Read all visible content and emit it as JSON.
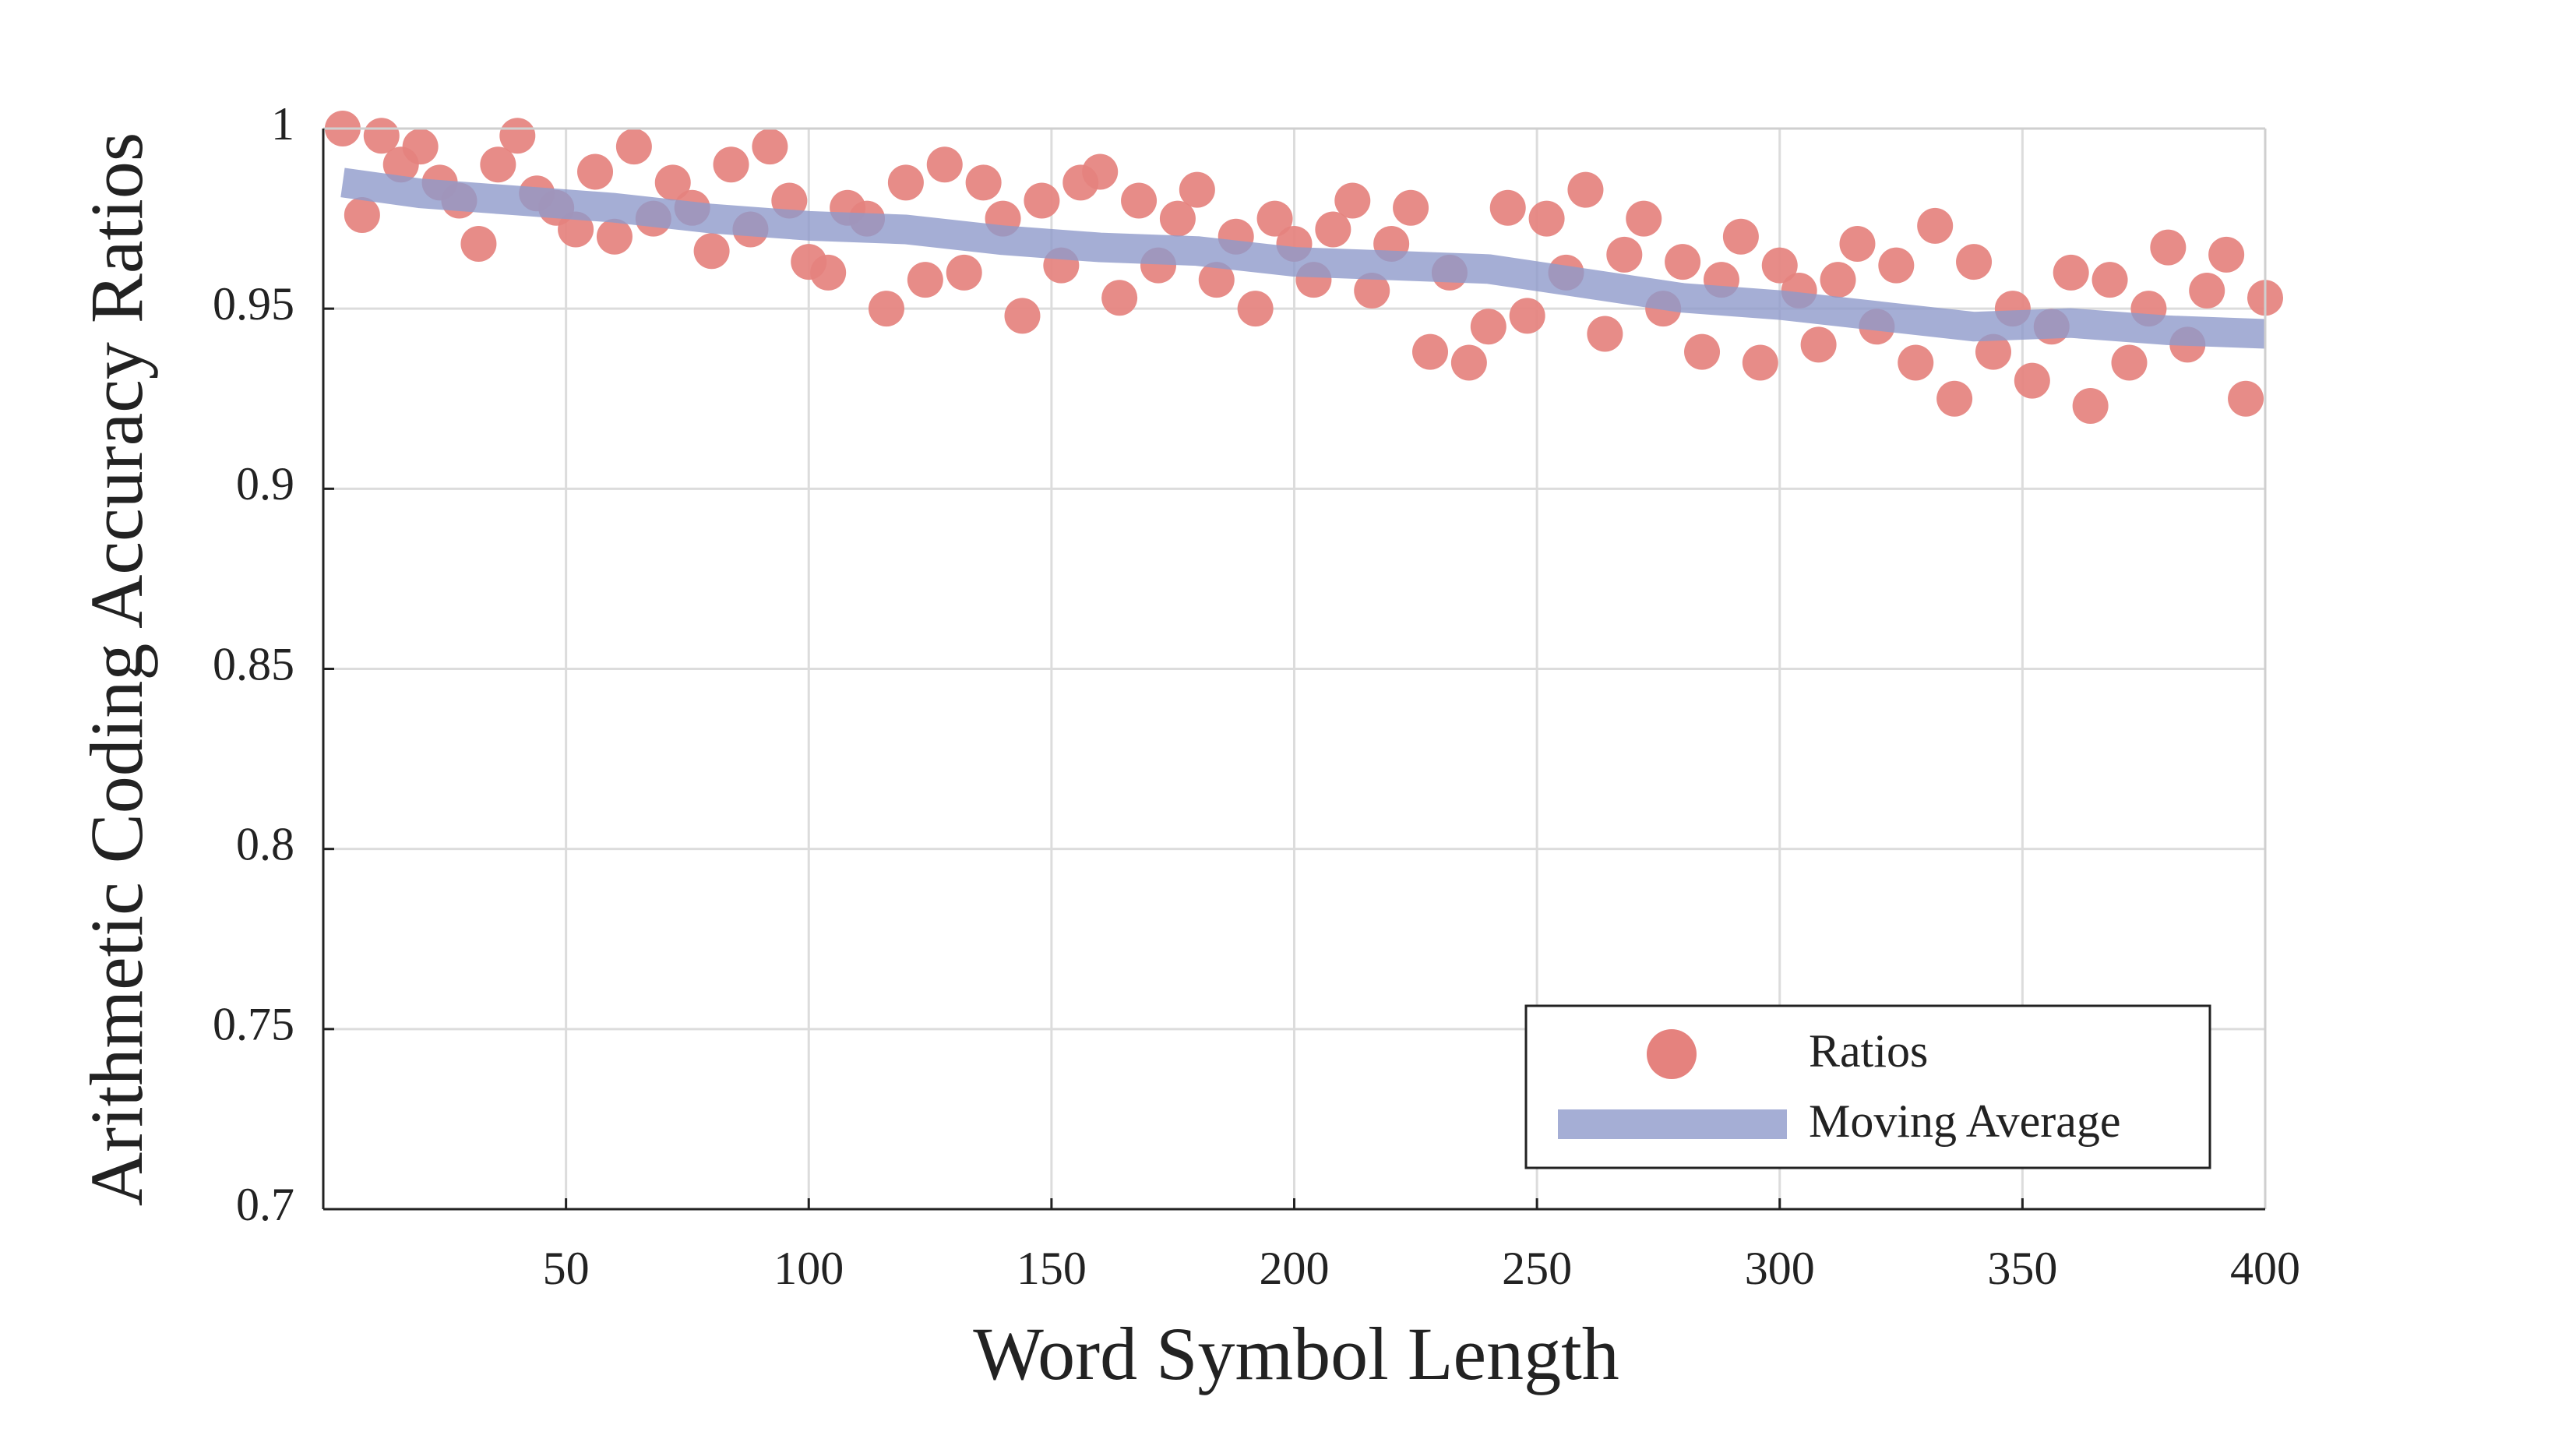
{
  "chart_data": {
    "type": "scatter",
    "xlabel": "Word Symbol Length",
    "ylabel": "Arithmetic Coding Accuracy Ratios",
    "xlim": [
      0,
      400
    ],
    "xticks": [
      50,
      100,
      150,
      200,
      250,
      300,
      350,
      400
    ],
    "ylim": [
      0.7,
      1
    ],
    "yticks": [
      0.7,
      0.75,
      0.8,
      0.85,
      0.9,
      0.95,
      1
    ],
    "grid": true,
    "legend": "lower right",
    "series": [
      {
        "name": "Ratios",
        "type": "scatter",
        "color": "#e5827e",
        "x": [
          4,
          8,
          12,
          16,
          20,
          24,
          28,
          32,
          36,
          40,
          44,
          48,
          52,
          56,
          60,
          64,
          68,
          72,
          76,
          80,
          84,
          88,
          92,
          96,
          100,
          104,
          108,
          112,
          116,
          120,
          124,
          128,
          132,
          136,
          140,
          144,
          148,
          152,
          156,
          160,
          164,
          168,
          172,
          176,
          180,
          184,
          188,
          192,
          196,
          200,
          204,
          208,
          212,
          216,
          220,
          224,
          228,
          232,
          236,
          240,
          244,
          248,
          252,
          256,
          260,
          264,
          268,
          272,
          276,
          280,
          284,
          288,
          292,
          296,
          300,
          304,
          308,
          312,
          316,
          320,
          324,
          328,
          332,
          336,
          340,
          344,
          348,
          352,
          356,
          360,
          364,
          368,
          372,
          376,
          380,
          384,
          388,
          392,
          396,
          400
        ],
        "values": [
          1.0,
          0.976,
          0.998,
          0.99,
          0.995,
          0.985,
          0.98,
          0.968,
          0.99,
          0.998,
          0.982,
          0.978,
          0.972,
          0.988,
          0.97,
          0.995,
          0.975,
          0.985,
          0.978,
          0.966,
          0.99,
          0.972,
          0.995,
          0.98,
          0.963,
          0.96,
          0.978,
          0.975,
          0.95,
          0.985,
          0.958,
          0.99,
          0.96,
          0.985,
          0.975,
          0.948,
          0.98,
          0.962,
          0.985,
          0.988,
          0.953,
          0.98,
          0.962,
          0.975,
          0.983,
          0.958,
          0.97,
          0.95,
          0.975,
          0.968,
          0.958,
          0.972,
          0.98,
          0.955,
          0.968,
          0.978,
          0.938,
          0.96,
          0.935,
          0.945,
          0.978,
          0.948,
          0.975,
          0.96,
          0.983,
          0.943,
          0.965,
          0.975,
          0.95,
          0.963,
          0.938,
          0.958,
          0.97,
          0.935,
          0.962,
          0.955,
          0.94,
          0.958,
          0.968,
          0.945,
          0.962,
          0.935,
          0.973,
          0.925,
          0.963,
          0.938,
          0.95,
          0.93,
          0.945,
          0.96,
          0.923,
          0.958,
          0.935,
          0.95,
          0.967,
          0.94,
          0.955,
          0.965,
          0.925,
          0.953
        ]
      },
      {
        "name": "Moving Average",
        "type": "line",
        "color": "#8e9acb",
        "x": [
          4,
          20,
          40,
          60,
          80,
          100,
          120,
          140,
          160,
          180,
          200,
          220,
          240,
          260,
          280,
          300,
          320,
          340,
          360,
          380,
          400
        ],
        "values": [
          0.985,
          0.982,
          0.98,
          0.978,
          0.975,
          0.973,
          0.972,
          0.969,
          0.967,
          0.966,
          0.963,
          0.962,
          0.961,
          0.957,
          0.953,
          0.951,
          0.948,
          0.945,
          0.946,
          0.944,
          0.943
        ]
      }
    ]
  }
}
